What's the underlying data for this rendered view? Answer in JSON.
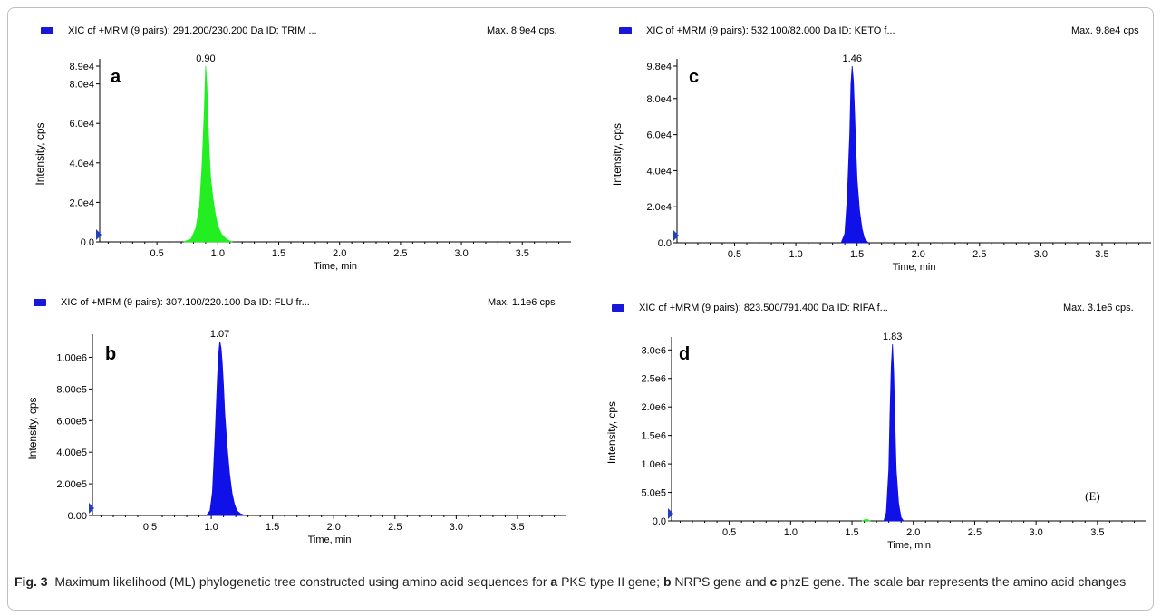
{
  "colors": {
    "green": "#22ee22",
    "blue": "#1010e8",
    "marker": "#2040c0",
    "axis": "#000000"
  },
  "caption": {
    "label": "Fig. 3",
    "p1": "Maximum likelihood (ML) phylogenetic tree constructed using amino acid sequences for",
    "a": "a",
    "p2": "PKS type II gene;",
    "b": "b",
    "p3": "NRPS gene and",
    "c": "c",
    "p4": "phzE gene. The scale bar represents the amino acid changes"
  },
  "chart_data": [
    {
      "type": "area",
      "panel_label": "a",
      "header": "XIC of +MRM (9 pairs): 291.200/230.200 Da ID: TRIM ...",
      "max_text": "Max. 8.9e4 cps.",
      "xlabel": "Time, min",
      "ylabel": "Intensity, cps",
      "xlim": [
        0.03,
        3.9
      ],
      "ylim": [
        0,
        89000
      ],
      "x_ticks": [
        0.5,
        1.0,
        1.5,
        2.0,
        2.5,
        3.0,
        3.5
      ],
      "x_tick_labels": [
        "0.5",
        "1.0",
        "1.5",
        "2.0",
        "2.5",
        "3.0",
        "3.5"
      ],
      "y_ticks": [
        0,
        20000,
        40000,
        60000,
        80000,
        89000
      ],
      "y_tick_labels": [
        "0.0",
        "2.0e4",
        "4.0e4",
        "6.0e4",
        "8.0e4",
        "8.9e4"
      ],
      "peak_label": "0.90",
      "series": [
        {
          "color": "green",
          "x": [
            0.72,
            0.78,
            0.82,
            0.85,
            0.87,
            0.89,
            0.9,
            0.91,
            0.92,
            0.93,
            0.94,
            0.96,
            0.98,
            1.0,
            1.03,
            1.06,
            1.09,
            1.12
          ],
          "y": [
            0,
            1500,
            7000,
            18000,
            38000,
            68000,
            89000,
            79000,
            60000,
            45000,
            33000,
            22000,
            14000,
            8000,
            4000,
            2000,
            700,
            0
          ]
        }
      ]
    },
    {
      "type": "area",
      "panel_label": "b",
      "header": "XIC of +MRM (9 pairs): 307.100/220.100 Da ID: FLU fr...",
      "max_text": "Max. 1.1e6 cps",
      "xlabel": "Time, min",
      "ylabel": "Intensity, cps",
      "xlim": [
        0.03,
        3.9
      ],
      "ylim": [
        0,
        1100000
      ],
      "x_ticks": [
        0.5,
        1.0,
        1.5,
        2.0,
        2.5,
        3.0,
        3.5
      ],
      "x_tick_labels": [
        "0.5",
        "1.0",
        "1.5",
        "2.0",
        "2.5",
        "3.0",
        "3.5"
      ],
      "y_ticks": [
        0,
        200000,
        400000,
        600000,
        800000,
        1000000
      ],
      "y_tick_labels": [
        "0.00",
        "2.00e5",
        "4.00e5",
        "6.00e5",
        "8.00e5",
        "1.00e6"
      ],
      "peak_label": "1.07",
      "series": [
        {
          "color": "blue",
          "x": [
            0.96,
            0.99,
            1.01,
            1.03,
            1.05,
            1.06,
            1.07,
            1.08,
            1.09,
            1.1,
            1.11,
            1.13,
            1.15,
            1.17,
            1.19,
            1.21,
            1.24,
            1.28
          ],
          "y": [
            0,
            30000,
            150000,
            480000,
            860000,
            1020000,
            1100000,
            1060000,
            960000,
            820000,
            650000,
            430000,
            260000,
            140000,
            70000,
            30000,
            10000,
            0
          ]
        }
      ]
    },
    {
      "type": "area",
      "panel_label": "c",
      "header": "XIC of +MRM (9 pairs): 532.100/82.000 Da ID: KETO f...",
      "max_text": "Max. 9.8e4 cps",
      "xlabel": "Time, min",
      "ylabel": "Intensity, cps",
      "xlim": [
        0.03,
        3.9
      ],
      "ylim": [
        0,
        98000
      ],
      "x_ticks": [
        0.5,
        1.0,
        1.5,
        2.0,
        2.5,
        3.0,
        3.5
      ],
      "x_tick_labels": [
        "0.5",
        "1.0",
        "1.5",
        "2.0",
        "2.5",
        "3.0",
        "3.5"
      ],
      "y_ticks": [
        0,
        20000,
        40000,
        60000,
        80000,
        98000
      ],
      "y_tick_labels": [
        "0.0",
        "2.0e4",
        "4.0e4",
        "6.0e4",
        "8.0e4",
        "9.8e4"
      ],
      "peak_label": "1.46",
      "series": [
        {
          "color": "blue",
          "x": [
            1.37,
            1.4,
            1.42,
            1.44,
            1.45,
            1.46,
            1.47,
            1.48,
            1.49,
            1.5,
            1.52,
            1.54,
            1.56,
            1.59
          ],
          "y": [
            0,
            5000,
            25000,
            60000,
            88000,
            98000,
            90000,
            72000,
            52000,
            35000,
            18000,
            8000,
            2500,
            0
          ]
        }
      ]
    },
    {
      "type": "area",
      "panel_label": "d",
      "header": "XIC of +MRM (9 pairs): 823.500/791.400 Da ID: RIFA f...",
      "max_text": "Max. 3.1e6 cps.",
      "xlabel": "Time, min",
      "ylabel": "Intensity, cps",
      "annotation": "(E)",
      "xlim": [
        0.03,
        3.9
      ],
      "ylim": [
        0,
        3100000
      ],
      "x_ticks": [
        0.5,
        1.0,
        1.5,
        2.0,
        2.5,
        3.0,
        3.5
      ],
      "x_tick_labels": [
        "0.5",
        "1.0",
        "1.5",
        "2.0",
        "2.5",
        "3.0",
        "3.5"
      ],
      "y_ticks": [
        0,
        500000,
        1000000,
        1500000,
        2000000,
        2500000,
        3000000
      ],
      "y_tick_labels": [
        "0.0",
        "5.0e5",
        "1.0e6",
        "1.5e6",
        "2.0e6",
        "2.5e6",
        "3.0e6"
      ],
      "peak_label": "1.83",
      "series": [
        {
          "color": "green",
          "x": [
            1.58,
            1.61,
            1.63,
            1.65
          ],
          "y": [
            0,
            25000,
            22000,
            0
          ]
        },
        {
          "color": "blue",
          "x": [
            1.76,
            1.78,
            1.8,
            1.81,
            1.82,
            1.83,
            1.84,
            1.85,
            1.86,
            1.88,
            1.9,
            1.92
          ],
          "y": [
            0,
            150000,
            900000,
            1900000,
            2700000,
            3100000,
            2600000,
            1700000,
            900000,
            300000,
            60000,
            0
          ]
        }
      ]
    }
  ]
}
